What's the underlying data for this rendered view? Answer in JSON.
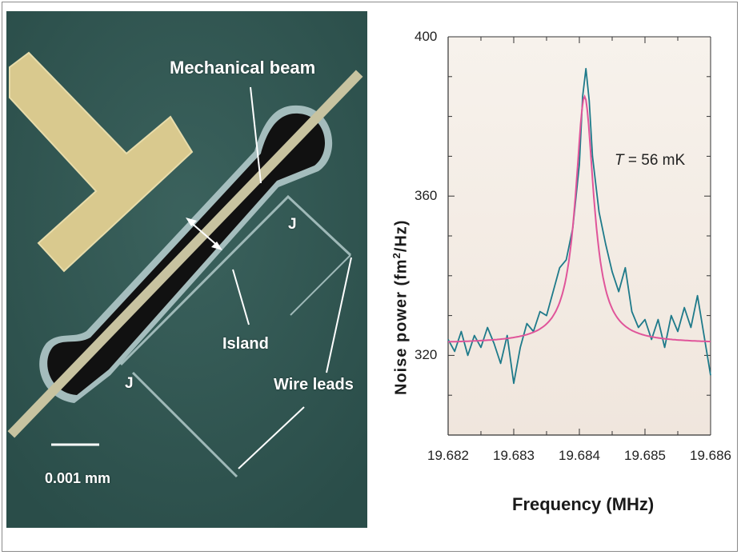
{
  "micrograph": {
    "labels": {
      "beam": "Mechanical beam",
      "island": "Island",
      "leads": "Wire leads",
      "junction_top": "J",
      "junction_bottom": "J",
      "scale": "0.001 mm"
    },
    "colors": {
      "substrate": "#2f5450",
      "gold_pad": "#d9c98e",
      "beam": "#c8c3a0",
      "cavity": "#111111",
      "rim": "#b9cfd0"
    }
  },
  "chart_data": {
    "type": "line",
    "title": "",
    "xlabel": "Frequency (MHz)",
    "ylabel_prefix": "Noise power (fm",
    "ylabel_sup": "2",
    "ylabel_suffix": "/Hz)",
    "xlim": [
      19.682,
      19.686
    ],
    "ylim": [
      300,
      400
    ],
    "xticks": [
      "19.682",
      "19.683",
      "19.684",
      "19.685",
      "19.686"
    ],
    "yticks": [
      "320",
      "360",
      "400"
    ],
    "annotation_var": "T",
    "annotation_text": " = 56 mK",
    "series": [
      {
        "kind": "data",
        "color": "#1e7a8a",
        "x": [
          19.682,
          19.6821,
          19.6822,
          19.6823,
          19.6824,
          19.6825,
          19.6826,
          19.6827,
          19.6828,
          19.6829,
          19.683,
          19.6831,
          19.6832,
          19.6833,
          19.6834,
          19.6835,
          19.6836,
          19.6837,
          19.6838,
          19.6839,
          19.684,
          19.68405,
          19.6841,
          19.68415,
          19.6842,
          19.6843,
          19.6844,
          19.6845,
          19.6846,
          19.6847,
          19.6848,
          19.6849,
          19.685,
          19.6851,
          19.6852,
          19.6853,
          19.6854,
          19.6855,
          19.6856,
          19.6857,
          19.6858,
          19.6859,
          19.686
        ],
        "y": [
          324,
          321,
          326,
          320,
          325,
          322,
          327,
          323,
          318,
          325,
          313,
          322,
          328,
          326,
          331,
          330,
          336,
          342,
          344,
          352,
          368,
          385,
          392,
          384,
          370,
          356,
          348,
          341,
          336,
          342,
          331,
          327,
          329,
          324,
          329,
          322,
          330,
          326,
          332,
          327,
          335,
          325,
          315
        ]
      },
      {
        "kind": "fit",
        "color": "#e0559a",
        "center": 19.68408,
        "width": 0.00017,
        "amplitude": 62,
        "baseline": 323
      }
    ]
  }
}
